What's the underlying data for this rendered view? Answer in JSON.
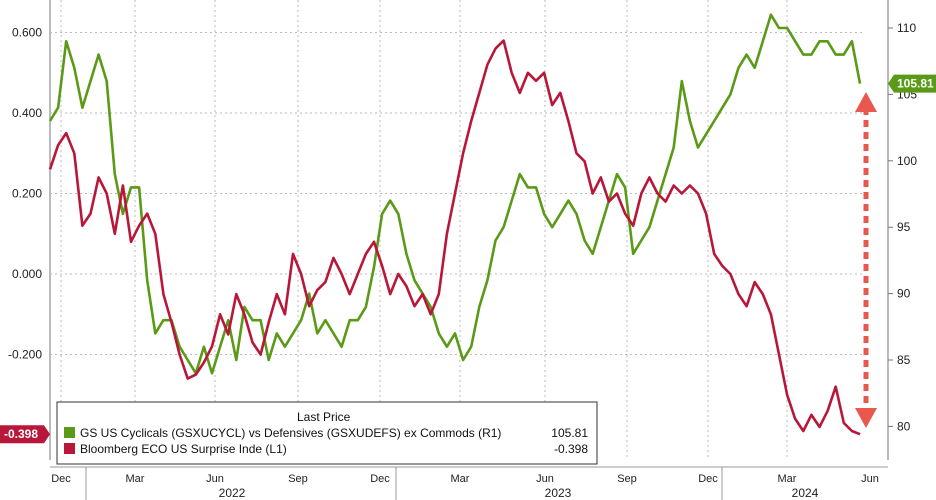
{
  "chart_data": {
    "type": "line",
    "title": "",
    "legend": {
      "header": "Last Price",
      "placement": "bottom-left",
      "entries": [
        {
          "label": "GS US Cyclicals (GSXUCYCL) vs Defensives (GSXUDEFS) ex Commods  (R1)",
          "value": "105.81",
          "color": "#5a9a17"
        },
        {
          "label": "Bloomberg ECO US Surprise Inde  (L1)",
          "value": "-0.398",
          "color": "#b8173a"
        }
      ]
    },
    "left_axis": {
      "ticks": [
        "0.600",
        "0.400",
        "0.200",
        "0.000",
        "-0.200"
      ],
      "ylim": [
        -0.398,
        0.6
      ],
      "last_label": "-0.398",
      "label_color": "#b8173a"
    },
    "right_axis": {
      "ticks": [
        "110",
        "105",
        "100",
        "95",
        "90",
        "85",
        "80"
      ],
      "ylim": [
        80,
        110
      ],
      "last_label": "105.81",
      "label_color": "#5a9a17"
    },
    "x_axis": {
      "month_labels": [
        "Dec",
        "Mar",
        "Jun",
        "Sep",
        "Dec",
        "Mar",
        "Jun",
        "Sep",
        "Dec",
        "Mar",
        "Jun"
      ],
      "year_labels": [
        "2022",
        "2023",
        "2024"
      ]
    },
    "series": [
      {
        "name": "GS US Cyclicals (GSXUCYCL) vs Defensives (GSXUDEFS) ex Commods",
        "axis": "right",
        "color": "#5a9a17",
        "t": [
          0,
          0.01,
          0.02,
          0.03,
          0.04,
          0.05,
          0.06,
          0.07,
          0.08,
          0.09,
          0.1,
          0.11,
          0.12,
          0.13,
          0.14,
          0.15,
          0.16,
          0.17,
          0.18,
          0.19,
          0.2,
          0.21,
          0.22,
          0.23,
          0.24,
          0.25,
          0.26,
          0.27,
          0.28,
          0.29,
          0.3,
          0.31,
          0.32,
          0.33,
          0.34,
          0.35,
          0.36,
          0.37,
          0.38,
          0.39,
          0.4,
          0.41,
          0.42,
          0.43,
          0.44,
          0.45,
          0.46,
          0.47,
          0.48,
          0.49,
          0.5,
          0.51,
          0.52,
          0.53,
          0.54,
          0.55,
          0.56,
          0.57,
          0.58,
          0.59,
          0.6,
          0.61,
          0.62,
          0.63,
          0.64,
          0.65,
          0.66,
          0.67,
          0.68,
          0.69,
          0.7,
          0.71,
          0.72,
          0.73,
          0.74,
          0.75,
          0.76,
          0.77,
          0.78,
          0.79,
          0.8,
          0.81,
          0.82,
          0.83,
          0.84,
          0.85,
          0.86,
          0.87,
          0.88,
          0.89,
          0.9,
          0.91,
          0.92,
          0.93,
          0.94,
          0.95,
          0.96,
          0.97,
          0.98,
          0.99,
          1.0
        ],
        "values": [
          103,
          104,
          109,
          107,
          104,
          106,
          108,
          106,
          99,
          96,
          98,
          98,
          91,
          87,
          88,
          88,
          86,
          85,
          84,
          86,
          84,
          86,
          88,
          85,
          89,
          88,
          88,
          85,
          87,
          86,
          87,
          88,
          90,
          87,
          88,
          87,
          86,
          88,
          88,
          89,
          92,
          96,
          97,
          96,
          93,
          91,
          90,
          89,
          87,
          86,
          87,
          85,
          86,
          89,
          91,
          94,
          95,
          97,
          99,
          98,
          98,
          96,
          95,
          96,
          97,
          96,
          94,
          93,
          95,
          97,
          99,
          98,
          93,
          94,
          95,
          97,
          99,
          101,
          106,
          103,
          101,
          102,
          103,
          104,
          105,
          107,
          108,
          107,
          109,
          111,
          110,
          110,
          109,
          108,
          108,
          109,
          109,
          108,
          108,
          109,
          105.81
        ]
      },
      {
        "name": "Bloomberg ECO US Surprise Inde",
        "axis": "left",
        "color": "#b8173a",
        "t": [
          0,
          0.01,
          0.02,
          0.03,
          0.04,
          0.05,
          0.06,
          0.07,
          0.08,
          0.09,
          0.1,
          0.11,
          0.12,
          0.13,
          0.14,
          0.15,
          0.16,
          0.17,
          0.18,
          0.19,
          0.2,
          0.21,
          0.22,
          0.23,
          0.24,
          0.25,
          0.26,
          0.27,
          0.28,
          0.29,
          0.3,
          0.31,
          0.32,
          0.33,
          0.34,
          0.35,
          0.36,
          0.37,
          0.38,
          0.39,
          0.4,
          0.41,
          0.42,
          0.43,
          0.44,
          0.45,
          0.46,
          0.47,
          0.48,
          0.49,
          0.5,
          0.51,
          0.52,
          0.53,
          0.54,
          0.55,
          0.56,
          0.57,
          0.58,
          0.59,
          0.6,
          0.61,
          0.62,
          0.63,
          0.64,
          0.65,
          0.66,
          0.67,
          0.68,
          0.69,
          0.7,
          0.71,
          0.72,
          0.73,
          0.74,
          0.75,
          0.76,
          0.77,
          0.78,
          0.79,
          0.8,
          0.81,
          0.82,
          0.83,
          0.84,
          0.85,
          0.86,
          0.87,
          0.88,
          0.89,
          0.9,
          0.91,
          0.92,
          0.93,
          0.94,
          0.95,
          0.96,
          0.97,
          0.98,
          0.99,
          1.0
        ],
        "values": [
          0.26,
          0.32,
          0.35,
          0.3,
          0.12,
          0.15,
          0.24,
          0.2,
          0.1,
          0.22,
          0.08,
          0.12,
          0.15,
          0.1,
          -0.05,
          -0.12,
          -0.2,
          -0.26,
          -0.25,
          -0.22,
          -0.18,
          -0.1,
          -0.15,
          -0.05,
          -0.1,
          -0.17,
          -0.2,
          -0.12,
          -0.05,
          -0.1,
          0.05,
          0.0,
          -0.08,
          -0.04,
          -0.02,
          0.04,
          0.0,
          -0.05,
          0.0,
          0.05,
          0.08,
          0.02,
          -0.05,
          0.0,
          -0.03,
          -0.08,
          -0.05,
          -0.1,
          -0.05,
          0.1,
          0.2,
          0.3,
          0.38,
          0.45,
          0.52,
          0.56,
          0.58,
          0.5,
          0.45,
          0.5,
          0.48,
          0.5,
          0.42,
          0.45,
          0.38,
          0.3,
          0.28,
          0.2,
          0.24,
          0.18,
          0.2,
          0.15,
          0.12,
          0.2,
          0.24,
          0.2,
          0.18,
          0.22,
          0.2,
          0.22,
          0.2,
          0.15,
          0.05,
          0.02,
          0.0,
          -0.05,
          -0.08,
          -0.02,
          -0.05,
          -0.1,
          -0.2,
          -0.3,
          -0.36,
          -0.39,
          -0.35,
          -0.38,
          -0.34,
          -0.28,
          -0.37,
          -0.39,
          -0.398
        ]
      }
    ]
  }
}
